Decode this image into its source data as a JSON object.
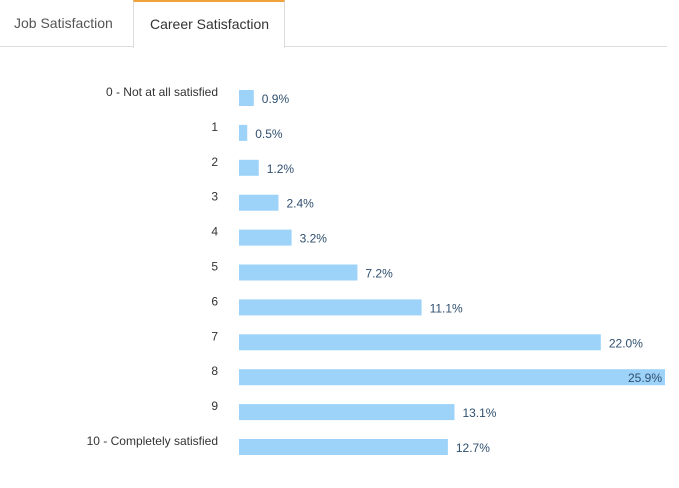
{
  "tabs": [
    {
      "label": "Job Satisfaction",
      "active": false
    },
    {
      "label": "Career Satisfaction",
      "active": true
    }
  ],
  "colors": {
    "bar": "#9dd3f9",
    "active_tab_accent": "#f0a23b"
  },
  "chart_data": {
    "type": "bar",
    "orientation": "horizontal",
    "title": "",
    "xlabel": "",
    "ylabel": "",
    "value_suffix": "%",
    "xlim": [
      0,
      25.9
    ],
    "categories": [
      "0 - Not at all satisfied",
      "1",
      "2",
      "3",
      "4",
      "5",
      "6",
      "7",
      "8",
      "9",
      "10 - Completely satisfied"
    ],
    "values": [
      0.9,
      0.5,
      1.2,
      2.4,
      3.2,
      7.2,
      11.1,
      22.0,
      25.9,
      13.1,
      12.7
    ],
    "value_labels": [
      "0.9%",
      "0.5%",
      "1.2%",
      "2.4%",
      "3.2%",
      "7.2%",
      "11.1%",
      "22.0%",
      "25.9%",
      "13.1%",
      "12.7%"
    ],
    "grid": false,
    "legend": "none"
  }
}
